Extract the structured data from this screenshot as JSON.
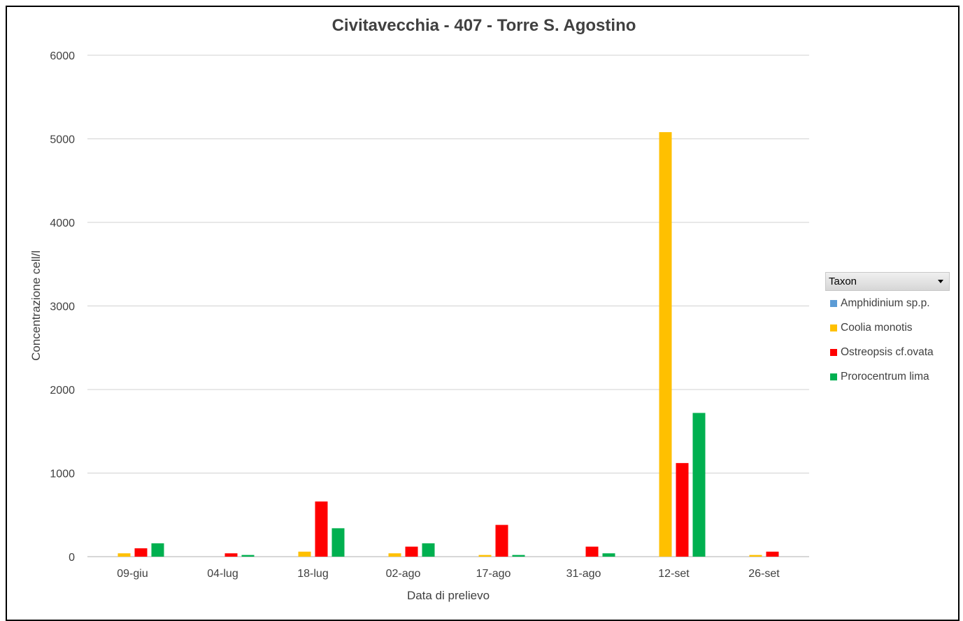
{
  "chart_data": {
    "type": "bar",
    "title": "Civitavecchia - 407 - Torre S. Agostino",
    "xlabel": "Data di prelievo",
    "ylabel": "Concentrazione cell/l",
    "ylim": [
      0,
      6000
    ],
    "yticks": [
      "0",
      "1000",
      "2000",
      "3000",
      "4000",
      "5000",
      "6000"
    ],
    "grid": true,
    "legend_position": "right",
    "legend_title": "Taxon",
    "categories": [
      "09-giu",
      "04-lug",
      "18-lug",
      "02-ago",
      "17-ago",
      "31-ago",
      "12-set",
      "26-set"
    ],
    "series": [
      {
        "name": "Amphidinium sp.p.",
        "color": "#5b9bd5",
        "values": [
          0,
          0,
          0,
          0,
          0,
          0,
          0,
          0
        ]
      },
      {
        "name": "Coolia monotis",
        "color": "#ffc000",
        "values": [
          40,
          0,
          60,
          40,
          20,
          0,
          5080,
          20
        ]
      },
      {
        "name": "Ostreopsis cf.ovata",
        "color": "#ff0000",
        "values": [
          100,
          40,
          660,
          120,
          380,
          120,
          1120,
          60
        ]
      },
      {
        "name": "Prorocentrum lima",
        "color": "#00b050",
        "values": [
          160,
          20,
          340,
          160,
          20,
          40,
          1720,
          0
        ]
      }
    ]
  }
}
